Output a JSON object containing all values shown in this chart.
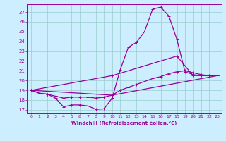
{
  "xlabel": "Windchill (Refroidissement éolien,°C)",
  "bg_color": "#cceeff",
  "grid_color": "#99cccc",
  "line_color": "#990099",
  "xlim": [
    -0.5,
    23.5
  ],
  "ylim": [
    16.7,
    27.8
  ],
  "xticks": [
    0,
    1,
    2,
    3,
    4,
    5,
    6,
    7,
    8,
    9,
    10,
    11,
    12,
    13,
    14,
    15,
    16,
    17,
    18,
    19,
    20,
    21,
    22,
    23
  ],
  "yticks": [
    17,
    18,
    19,
    20,
    21,
    22,
    23,
    24,
    25,
    26,
    27
  ],
  "line1_x": [
    0,
    1,
    2,
    3,
    4,
    5,
    6,
    7,
    8,
    9,
    10,
    11,
    12,
    13,
    14,
    15,
    16,
    17,
    18,
    19,
    20,
    21,
    22,
    23
  ],
  "line1_y": [
    19.0,
    18.7,
    18.6,
    18.2,
    17.3,
    17.5,
    17.5,
    17.4,
    17.05,
    17.1,
    18.2,
    21.1,
    23.4,
    23.9,
    25.0,
    27.3,
    27.5,
    26.6,
    24.2,
    20.9,
    20.6,
    20.5,
    20.5,
    20.5
  ],
  "line2_x": [
    0,
    1,
    2,
    3,
    4,
    5,
    6,
    7,
    8,
    9,
    10,
    11,
    12,
    13,
    14,
    15,
    16,
    17,
    18,
    19,
    20,
    21,
    22,
    23
  ],
  "line2_y": [
    19.0,
    18.7,
    18.6,
    18.4,
    18.2,
    18.3,
    18.3,
    18.3,
    18.2,
    18.3,
    18.5,
    19.0,
    19.3,
    19.6,
    19.9,
    20.2,
    20.4,
    20.7,
    20.9,
    21.0,
    20.8,
    20.6,
    20.5,
    20.5
  ],
  "line3_x": [
    0,
    10,
    23
  ],
  "line3_y": [
    19.0,
    18.5,
    20.5
  ],
  "line4_x": [
    0,
    10,
    18,
    20,
    23
  ],
  "line4_y": [
    19.0,
    20.5,
    22.5,
    20.5,
    20.5
  ]
}
